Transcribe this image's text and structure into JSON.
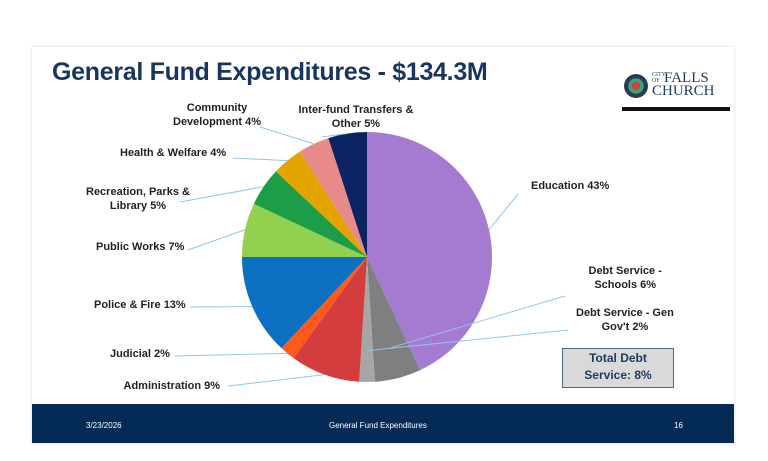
{
  "slide": {
    "title": "General Fund Expenditures - $134.3M",
    "logo": {
      "text_small": "CITY OF",
      "text_line1": "FALLS",
      "text_line2": "CHURCH"
    },
    "callout": {
      "line1": "Total Debt",
      "line2": "Service:  8%"
    },
    "footer": {
      "date": "3/23/2026",
      "center": "General Fund Expenditures",
      "page": "16"
    }
  },
  "chart_data": {
    "type": "pie",
    "title": "",
    "slices": [
      {
        "label": "Education 43%",
        "value": 43,
        "color": "#A47BD1"
      },
      {
        "label": "Debt Service - Schools 6%",
        "value": 6,
        "color": "#7F7F7F"
      },
      {
        "label": "Debt Service - Gen Gov't 2%",
        "value": 2,
        "color": "#A6A6A6"
      },
      {
        "label": "Administration 9%",
        "value": 9,
        "color": "#D43D3D"
      },
      {
        "label": "Judicial 2%",
        "value": 2,
        "color": "#FF5A1A"
      },
      {
        "label": "Police & Fire 13%",
        "value": 13,
        "color": "#0B70C2"
      },
      {
        "label": "Public Works 7%",
        "value": 7,
        "color": "#92D050"
      },
      {
        "label": "Recreation, Parks & Library 5%",
        "value": 5,
        "color": "#1C9E48"
      },
      {
        "label": "Health & Welfare 4%",
        "value": 4,
        "color": "#E3A300"
      },
      {
        "label": "Community Development 4%",
        "value": 4,
        "color": "#E88A8A"
      },
      {
        "label": "Inter-fund Transfers & Other 5%",
        "value": 5,
        "color": "#0C2361"
      }
    ],
    "leader_color": "#8CC8EE"
  }
}
